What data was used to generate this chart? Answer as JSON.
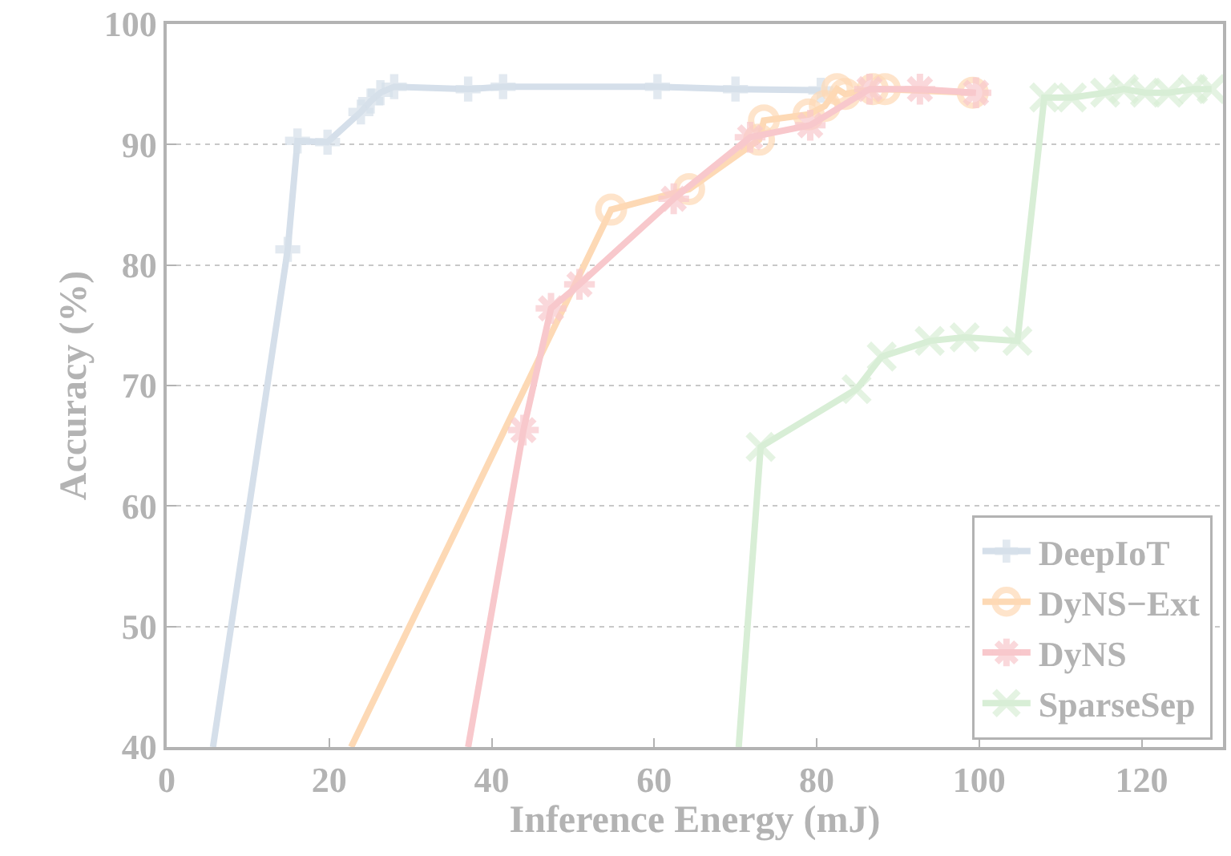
{
  "chart_data": {
    "type": "line",
    "xlabel": "Inference Energy (mJ)",
    "ylabel": "Accuracy (%)",
    "xlim": [
      0,
      130
    ],
    "ylim": [
      40,
      100
    ],
    "xticks": [
      0,
      20,
      40,
      60,
      80,
      100,
      120
    ],
    "yticks": [
      40,
      50,
      60,
      70,
      80,
      90,
      100
    ],
    "grid": "y",
    "legend": "bottom right",
    "line_style": "solid",
    "series": [
      {
        "name": "DeepIoT",
        "color": "#d5dfea",
        "marker": "cross",
        "x": [
          5.7,
          14.9,
          16.1,
          19.8,
          23.9,
          25.1,
          26.3,
          28.0,
          37.1,
          41.4,
          60.4,
          70.0,
          80.5
        ],
        "values": [
          40,
          81.3,
          90.3,
          90.2,
          92.7,
          93.6,
          94.3,
          94.8,
          94.6,
          94.8,
          94.8,
          94.6,
          94.5
        ]
      },
      {
        "name": "DyNS−Ext",
        "color": "#fdd9b5",
        "marker": "circle",
        "x": [
          22.7,
          54.7,
          64.3,
          72.9,
          73.5,
          79.0,
          81.0,
          82.5,
          83.5,
          86.9,
          88.4,
          99.2
        ],
        "values": [
          40,
          84.6,
          86.3,
          90.4,
          92.0,
          92.5,
          93.2,
          94.6,
          94.2,
          94.6,
          94.6,
          94.3
        ]
      },
      {
        "name": "DyNS",
        "color": "#f8c8cc",
        "marker": "cross",
        "x": [
          37.1,
          43.9,
          47.3,
          50.8,
          62.4,
          71.8,
          79.2,
          86.5,
          92.7,
          99.6
        ],
        "values": [
          40,
          66.3,
          76.4,
          78.4,
          85.5,
          90.6,
          91.6,
          94.6,
          94.6,
          94.3
        ]
      },
      {
        "name": "SparseSep",
        "color": "#d8eed6",
        "marker": "x",
        "x": [
          70.4,
          73.1,
          84.9,
          88.0,
          93.9,
          98.2,
          104.7,
          108.0,
          111.4,
          115.5,
          117.8,
          120.4,
          123.3,
          126.3,
          128.6
        ],
        "values": [
          40,
          64.9,
          69.7,
          72.4,
          73.7,
          74.0,
          73.7,
          93.9,
          93.9,
          94.3,
          94.6,
          94.3,
          94.3,
          94.6,
          94.6
        ]
      }
    ]
  }
}
